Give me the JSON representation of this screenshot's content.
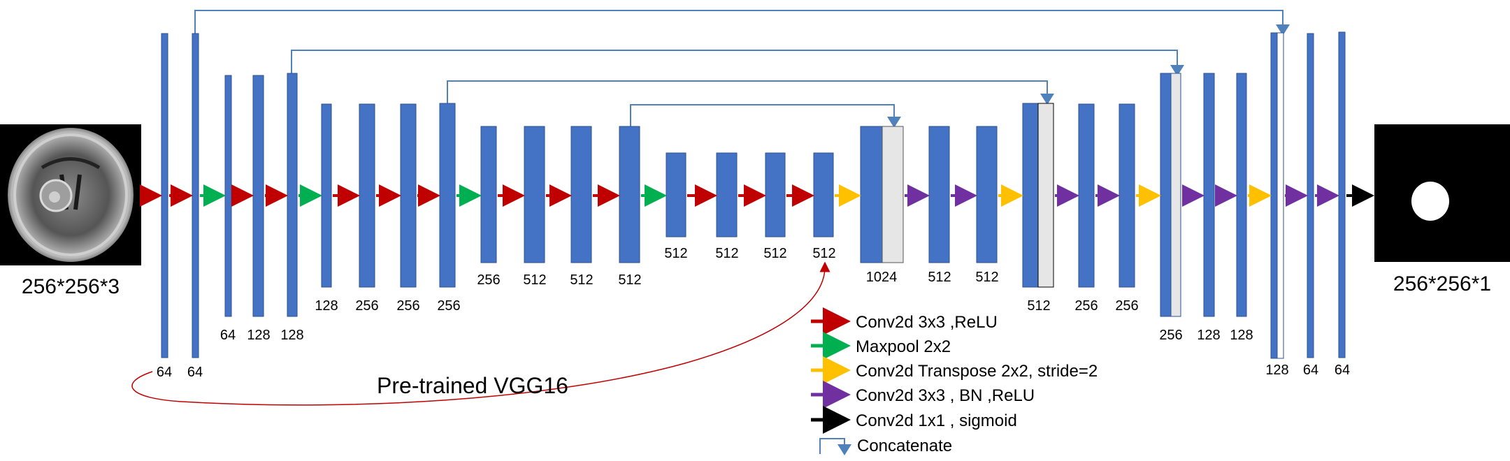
{
  "input": {
    "size_label": "256*256*3"
  },
  "output": {
    "size_label": "256*256*1"
  },
  "layers": {
    "l1": "64",
    "l2": "64",
    "l3": "64",
    "l4": "128",
    "l5": "128",
    "l6": "128",
    "l7": "256",
    "l8": "256",
    "l9": "256",
    "l10": "256",
    "l11": "512",
    "l12": "512",
    "l13": "512",
    "l14": "512",
    "l15": "512",
    "l16": "512",
    "l17": "512",
    "l18": "1024",
    "l19": "512",
    "l20": "512",
    "l21": "512",
    "l22": "256",
    "l23": "256",
    "l24": "256",
    "l25": "128",
    "l26": "128",
    "l27": "128",
    "l28": "64",
    "l29": "64"
  },
  "pretrained_label": "Pre-trained VGG16",
  "legend": {
    "conv_relu": "Conv2d 3x3 ,ReLU",
    "maxpool": "Maxpool 2x2",
    "transpose": "Conv2d Transpose  2x2, stride=2",
    "conv_bn_relu": "Conv2d 3x3 , BN ,ReLU",
    "conv_sigmoid": "Conv2d 1x1 , sigmoid",
    "concatenate": "Concatenate"
  },
  "colors": {
    "block": "#4472c4",
    "concat_block": "#e7e6e6",
    "conv_relu": "#c00000",
    "maxpool": "#00b050",
    "transpose": "#ffc000",
    "conv_bn_relu": "#7030a0",
    "conv_sigmoid": "#000000",
    "concatenate": "#4f81bd"
  }
}
